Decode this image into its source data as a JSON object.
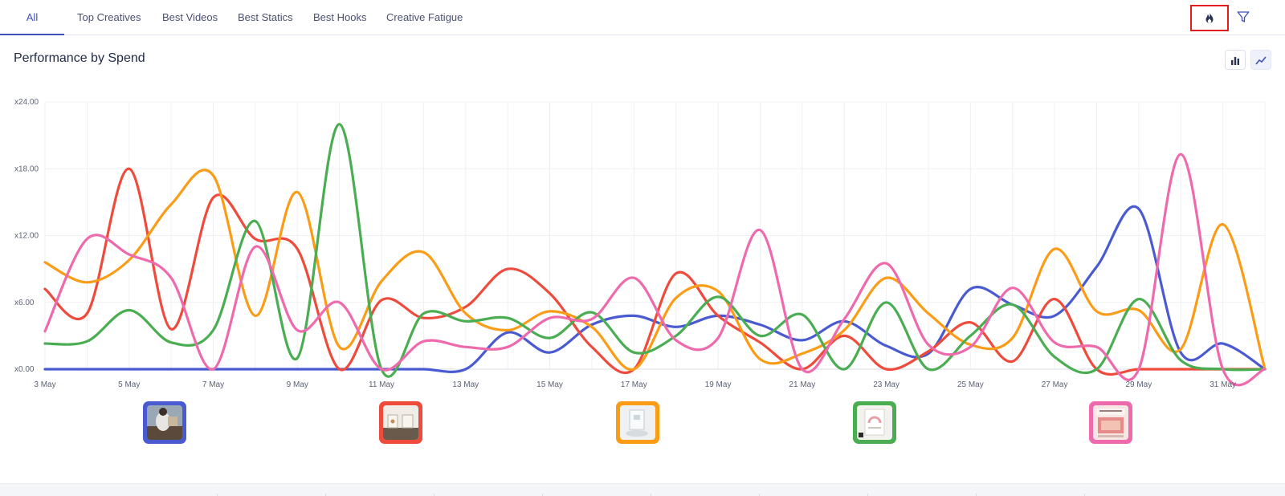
{
  "tabs": {
    "all": "All",
    "top_creatives": "Top Creatives",
    "best_videos": "Best Videos",
    "best_statics": "Best Statics",
    "best_hooks": "Best Hooks",
    "creative_fatigue": "Creative Fatigue"
  },
  "toolbar": {
    "hot_icon": "fire-icon",
    "filter_icon": "filter-icon"
  },
  "section": {
    "title": "Performance by Spend",
    "bar_view_icon": "bar-chart-icon",
    "line_view_icon": "line-chart-icon"
  },
  "thumbnails": [
    {
      "color": "#4a5bd1",
      "desc_icon": "creative-thumbnail"
    },
    {
      "color": "#ef4b3c",
      "desc_icon": "creative-thumbnail"
    },
    {
      "color": "#fb9c17",
      "desc_icon": "creative-thumbnail"
    },
    {
      "color": "#4aad52",
      "desc_icon": "creative-thumbnail"
    },
    {
      "color": "#ee6aad",
      "desc_icon": "creative-thumbnail"
    }
  ],
  "chart_data": {
    "type": "line",
    "title": "Performance by Spend",
    "xlabel": "",
    "ylabel": "",
    "ylim": [
      0,
      24
    ],
    "yticks": [
      "x0.00",
      "x6.00",
      "x12.00",
      "x18.00",
      "x24.00"
    ],
    "ytick_values": [
      0,
      6,
      12,
      18,
      24
    ],
    "x_labels": [
      "3 May",
      "5 May",
      "7 May",
      "9 May",
      "11 May",
      "13 May",
      "15 May",
      "17 May",
      "19 May",
      "21 May",
      "23 May",
      "25 May",
      "27 May",
      "29 May",
      "31 May"
    ],
    "x_label_days": [
      3,
      5,
      7,
      9,
      11,
      13,
      15,
      17,
      19,
      21,
      23,
      25,
      27,
      29,
      31
    ],
    "x_range": [
      3,
      32
    ],
    "grid": true,
    "series": [
      {
        "name": "blue",
        "color": "#4a5bd1",
        "x": [
          3,
          4,
          5,
          6,
          7,
          8,
          9,
          10,
          11,
          12,
          13,
          14,
          15,
          16,
          17,
          18,
          19,
          20,
          21,
          22,
          23,
          24,
          25,
          26,
          27,
          28,
          29,
          30,
          31,
          32
        ],
        "values": [
          0,
          0,
          0,
          0,
          0,
          0,
          0,
          0,
          0,
          0,
          0,
          3.3,
          1.5,
          4.0,
          4.8,
          3.8,
          4.8,
          4.0,
          2.6,
          4.3,
          2.1,
          1.4,
          7.2,
          5.8,
          4.8,
          9.2,
          14.4,
          1.5,
          2.3,
          0
        ]
      },
      {
        "name": "red",
        "color": "#ef4b3c",
        "x": [
          3,
          4,
          5,
          6,
          7,
          8,
          9,
          10,
          11,
          12,
          13,
          14,
          15,
          16,
          17,
          18,
          19,
          20,
          21,
          22,
          23,
          24,
          25,
          26,
          27,
          28,
          29,
          30,
          31,
          32
        ],
        "values": [
          7.2,
          5.0,
          18.0,
          3.6,
          15.4,
          11.7,
          10.8,
          0,
          6.2,
          4.6,
          5.6,
          9.0,
          6.8,
          2.0,
          0,
          8.6,
          4.8,
          2.4,
          0,
          3.0,
          0,
          1.6,
          4.2,
          0.7,
          6.3,
          0,
          0,
          0,
          0,
          0
        ]
      },
      {
        "name": "orange",
        "color": "#fb9c17",
        "x": [
          3,
          4,
          5,
          6,
          7,
          8,
          9,
          10,
          11,
          12,
          13,
          14,
          15,
          16,
          17,
          18,
          19,
          20,
          21,
          22,
          23,
          24,
          25,
          26,
          27,
          28,
          29,
          30,
          31,
          32
        ],
        "values": [
          9.6,
          7.8,
          9.8,
          14.8,
          17.4,
          4.8,
          15.9,
          2.0,
          7.9,
          10.5,
          5.0,
          3.5,
          5.2,
          3.8,
          0,
          6.4,
          7.0,
          0.9,
          1.4,
          3.5,
          8.2,
          5.0,
          2.2,
          2.8,
          10.8,
          5.2,
          5.3,
          1.8,
          13.0,
          0
        ]
      },
      {
        "name": "green",
        "color": "#4aad52",
        "x": [
          3,
          4,
          5,
          6,
          7,
          8,
          9,
          10,
          11,
          12,
          13,
          14,
          15,
          16,
          17,
          18,
          19,
          20,
          21,
          22,
          23,
          24,
          25,
          26,
          27,
          28,
          29,
          30,
          31,
          32
        ],
        "values": [
          2.3,
          2.5,
          5.3,
          2.4,
          3.5,
          13.3,
          1.0,
          22.0,
          0,
          5.0,
          4.3,
          4.6,
          2.8,
          5.1,
          1.5,
          3.0,
          6.5,
          3.0,
          4.9,
          0,
          6.0,
          0,
          3.0,
          5.8,
          1.1,
          0,
          6.3,
          0.8,
          0,
          0
        ]
      },
      {
        "name": "pink",
        "color": "#ee6aad",
        "x": [
          3,
          4,
          5,
          6,
          7,
          8,
          9,
          10,
          11,
          12,
          13,
          14,
          15,
          16,
          17,
          18,
          19,
          20,
          21,
          22,
          23,
          24,
          25,
          26,
          27,
          28,
          29,
          30,
          31,
          32
        ],
        "values": [
          3.4,
          11.7,
          10.3,
          8.2,
          0,
          11.0,
          3.5,
          6.0,
          0,
          2.5,
          2.0,
          2.0,
          4.6,
          4.5,
          8.2,
          2.6,
          2.8,
          12.5,
          0,
          4.5,
          9.5,
          2.2,
          2.0,
          7.3,
          2.4,
          2.0,
          0,
          19.3,
          0,
          0
        ]
      }
    ]
  }
}
